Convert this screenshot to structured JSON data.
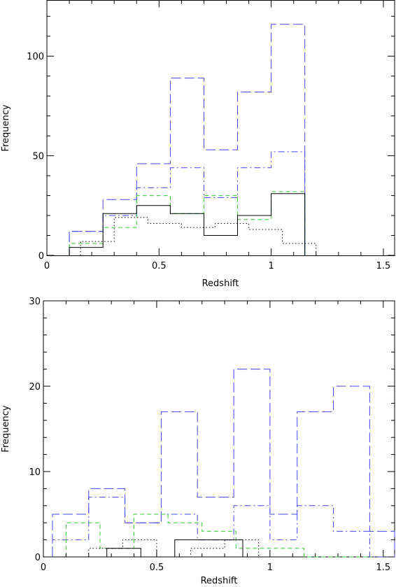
{
  "chart_data": [
    {
      "type": "histogram",
      "xlabel": "Redshift",
      "ylabel": "Frequency",
      "xlim": [
        0,
        1.55
      ],
      "ylim": [
        0,
        128
      ],
      "xticks": [
        0,
        0.5,
        1,
        1.5
      ],
      "xtick_labels": [
        "0",
        "0.5",
        "1",
        "1.5"
      ],
      "yticks": [
        0,
        50,
        100
      ],
      "ytick_labels": [
        "0",
        "50",
        "100"
      ],
      "grid": false,
      "series": [
        {
          "style": "long-dash",
          "color": "#4444ee",
          "edges": [
            0.1,
            0.25,
            0.4,
            0.55,
            0.7,
            0.85,
            1.0,
            1.15
          ],
          "values": [
            12,
            28,
            46,
            89,
            53,
            82,
            116
          ]
        },
        {
          "style": "dash-dot",
          "color": "#4444ee",
          "edges": [
            0.1,
            0.25,
            0.4,
            0.55,
            0.7,
            0.85,
            1.0,
            1.15
          ],
          "values": [
            12,
            20,
            34,
            44,
            29,
            44,
            52
          ]
        },
        {
          "style": "short-dash",
          "color": "#33cc33",
          "edges": [
            0.1,
            0.25,
            0.4,
            0.55,
            0.7,
            0.85,
            1.0,
            1.15
          ],
          "values": [
            6,
            14,
            30,
            21,
            30,
            18,
            32
          ]
        },
        {
          "style": "solid",
          "color": "#000000",
          "edges": [
            0.1,
            0.25,
            0.4,
            0.55,
            0.7,
            0.85,
            1.0,
            1.15
          ],
          "values": [
            4,
            21,
            25,
            21,
            10,
            20,
            31
          ]
        },
        {
          "style": "dotted",
          "color": "#000000",
          "edges": [
            0.15,
            0.3,
            0.45,
            0.6,
            0.75,
            0.9,
            1.05,
            1.2
          ],
          "values": [
            7,
            19,
            16,
            14,
            16,
            13,
            6
          ]
        }
      ]
    },
    {
      "type": "histogram",
      "xlabel": "Redshift",
      "ylabel": "Frequency",
      "xlim": [
        0,
        1.55
      ],
      "ylim": [
        0,
        30
      ],
      "xticks": [
        0,
        0.5,
        1,
        1.5
      ],
      "xtick_labels": [
        "0",
        "0.5",
        "1",
        "1.5"
      ],
      "yticks": [
        0,
        10,
        20,
        30
      ],
      "ytick_labels": [
        "0",
        "10",
        "20",
        "30"
      ],
      "grid": false,
      "series": [
        {
          "style": "long-dash",
          "color": "#4444ee",
          "edges": [
            0.04,
            0.2,
            0.36,
            0.52,
            0.68,
            0.84,
            1.0,
            1.12,
            1.28,
            1.44,
            1.55
          ],
          "values": [
            5,
            8,
            4,
            17,
            7,
            22,
            5,
            17,
            20,
            3
          ]
        },
        {
          "style": "dash-dot",
          "color": "#4444ee",
          "edges": [
            0.04,
            0.2,
            0.36,
            0.52,
            0.68,
            0.84,
            1.0,
            1.12,
            1.28,
            1.44,
            1.55
          ],
          "values": [
            2,
            7,
            4,
            5,
            2,
            6,
            2,
            6,
            3,
            0
          ]
        },
        {
          "style": "short-dash",
          "color": "#33cc33",
          "edges": [
            0.1,
            0.25,
            0.4,
            0.55,
            0.7,
            0.85,
            1.0,
            1.15,
            1.3,
            1.45
          ],
          "values": [
            4,
            1,
            5,
            4,
            3,
            1,
            1,
            0,
            0
          ]
        },
        {
          "style": "solid",
          "color": "#000000",
          "edges": [
            0.28,
            0.43,
            0.58,
            0.73,
            0.88
          ],
          "values": [
            1,
            0,
            2,
            2
          ]
        },
        {
          "style": "dotted",
          "color": "#000000",
          "edges": [
            0.2,
            0.35,
            0.5,
            0.65,
            0.8,
            0.95,
            1.1
          ],
          "values": [
            1,
            2,
            0,
            1,
            2,
            0
          ]
        }
      ]
    }
  ]
}
